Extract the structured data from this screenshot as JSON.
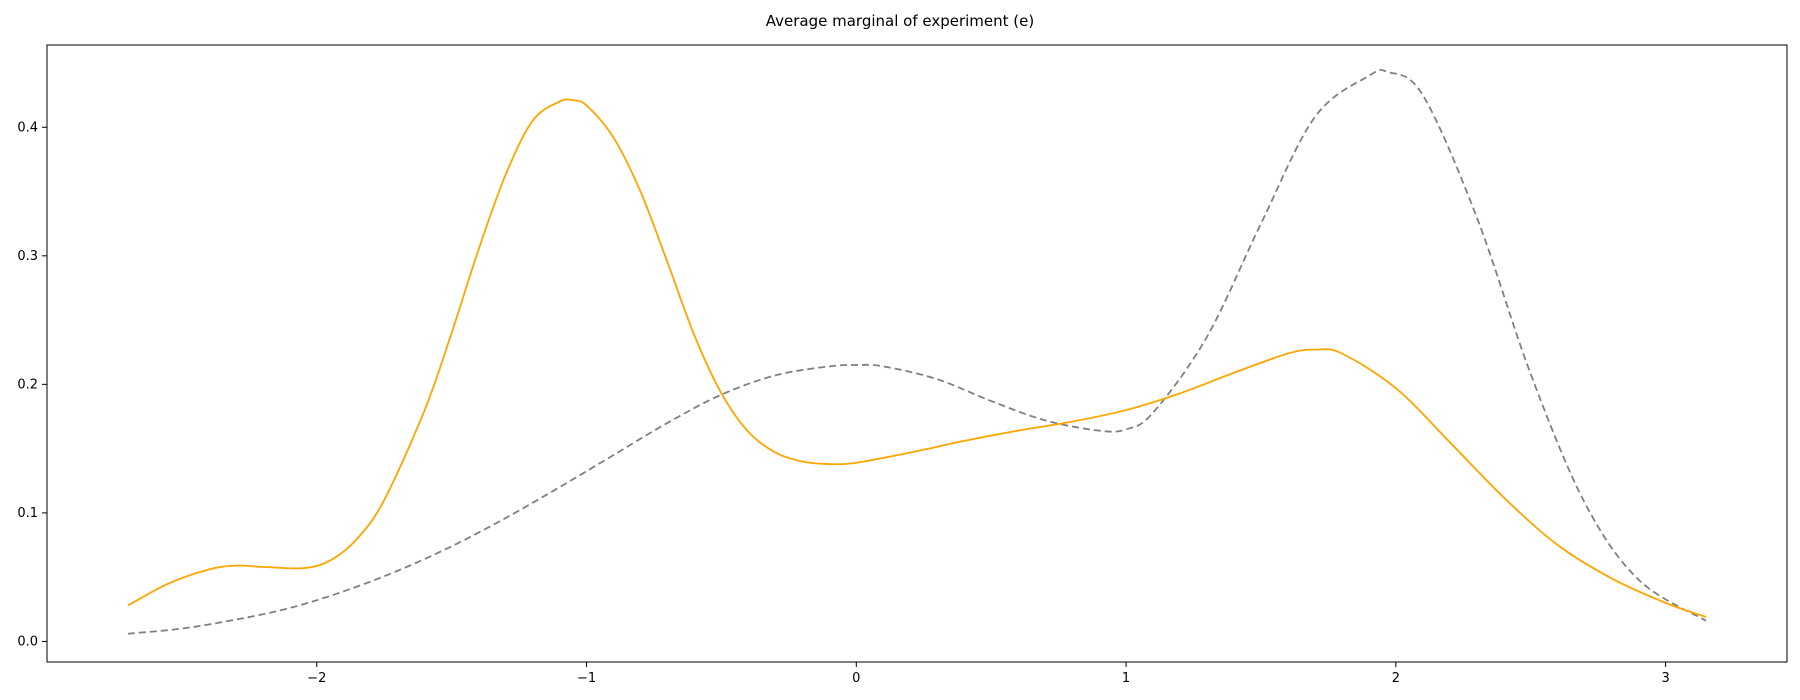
{
  "chart_data": {
    "type": "line",
    "title": "Average marginal of experiment (e)",
    "xlabel": "",
    "ylabel": "",
    "xlim": [
      -3.0,
      3.45
    ],
    "ylim": [
      -0.016,
      0.464
    ],
    "grid": false,
    "x_ticks": [
      -2,
      -1,
      0,
      1,
      2,
      3
    ],
    "x_tick_labels": [
      "−2",
      "−1",
      "0",
      "1",
      "2",
      "3"
    ],
    "y_ticks": [
      0.0,
      0.1,
      0.2,
      0.3,
      0.4
    ],
    "y_tick_labels": [
      "0.0",
      "0.1",
      "0.2",
      "0.3",
      "0.4"
    ],
    "series": [
      {
        "color": "#808080",
        "style": "dashed",
        "x": [
          -2.7,
          -2.5,
          -2.3,
          -2.1,
          -1.9,
          -1.7,
          -1.5,
          -1.3,
          -1.1,
          -0.9,
          -0.7,
          -0.5,
          -0.3,
          -0.1,
          0.0,
          0.1,
          0.3,
          0.5,
          0.7,
          0.9,
          1.0,
          1.1,
          1.3,
          1.5,
          1.7,
          1.9,
          1.97,
          2.1,
          2.3,
          2.5,
          2.7,
          2.9,
          3.15
        ],
        "y": [
          0.006,
          0.01,
          0.017,
          0.026,
          0.039,
          0.055,
          0.074,
          0.096,
          0.12,
          0.145,
          0.17,
          0.192,
          0.207,
          0.214,
          0.215,
          0.214,
          0.204,
          0.187,
          0.172,
          0.164,
          0.165,
          0.178,
          0.237,
          0.325,
          0.408,
          0.44,
          0.443,
          0.425,
          0.33,
          0.208,
          0.108,
          0.048,
          0.016
        ]
      },
      {
        "color": "#FFA500",
        "style": "solid",
        "x": [
          -2.7,
          -2.55,
          -2.4,
          -2.3,
          -2.2,
          -2.05,
          -1.95,
          -1.85,
          -1.75,
          -1.6,
          -1.5,
          -1.4,
          -1.3,
          -1.2,
          -1.1,
          -1.05,
          -1.0,
          -0.9,
          -0.8,
          -0.7,
          -0.6,
          -0.5,
          -0.4,
          -0.3,
          -0.2,
          -0.1,
          0.0,
          0.2,
          0.4,
          0.6,
          0.8,
          1.0,
          1.2,
          1.4,
          1.6,
          1.7,
          1.8,
          2.0,
          2.2,
          2.4,
          2.6,
          2.8,
          3.0,
          3.15
        ],
        "y": [
          0.028,
          0.045,
          0.056,
          0.059,
          0.058,
          0.057,
          0.063,
          0.08,
          0.11,
          0.18,
          0.24,
          0.305,
          0.363,
          0.405,
          0.42,
          0.421,
          0.417,
          0.392,
          0.35,
          0.295,
          0.238,
          0.193,
          0.163,
          0.147,
          0.14,
          0.138,
          0.139,
          0.147,
          0.156,
          0.164,
          0.171,
          0.18,
          0.193,
          0.209,
          0.224,
          0.227,
          0.224,
          0.197,
          0.155,
          0.112,
          0.075,
          0.049,
          0.03,
          0.019
        ]
      }
    ]
  }
}
